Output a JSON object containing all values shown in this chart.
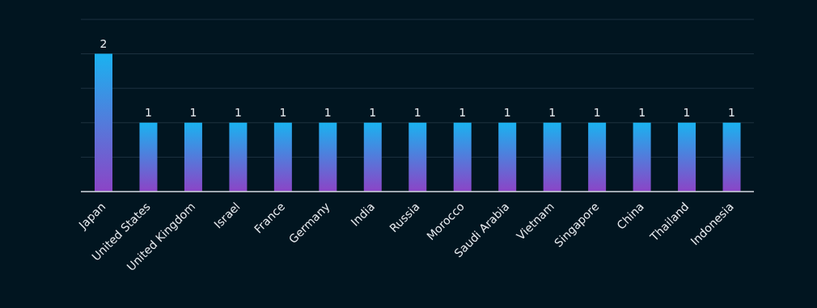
{
  "chart_data": {
    "type": "bar",
    "categories": [
      "Japan",
      "United States",
      "United Kingdom",
      "Israel",
      "France",
      "Germany",
      "India",
      "Russia",
      "Morocco",
      "Saudi Arabia",
      "Vietnam",
      "Singapore",
      "China",
      "Thailand",
      "Indonesia"
    ],
    "values": [
      2,
      1,
      1,
      1,
      1,
      1,
      1,
      1,
      1,
      1,
      1,
      1,
      1,
      1,
      1
    ],
    "color": "#1ab2f0",
    "ylim": [
      0,
      2.5
    ],
    "yticks": [
      {
        "value": 0,
        "label": null
      },
      {
        "value": 0.5,
        "label": null
      },
      {
        "value": 1,
        "label": null
      },
      {
        "value": 1.5,
        "label": null
      },
      {
        "value": 2,
        "label": null
      },
      {
        "value": 2.5,
        "label": null
      }
    ],
    "grid": "y",
    "tick_labels": "x",
    "data_labels": true
  }
}
